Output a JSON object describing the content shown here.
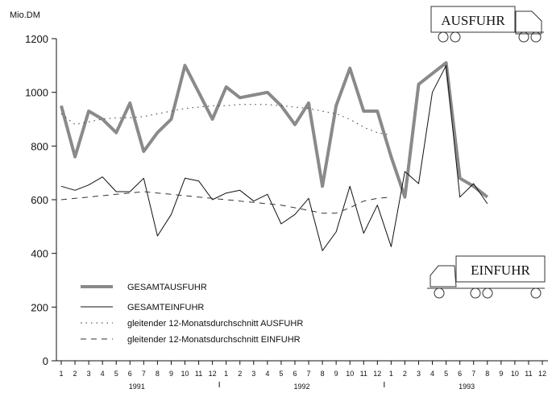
{
  "chart_data": {
    "type": "line",
    "y_label": "Mio.DM",
    "categories": [
      "1",
      "2",
      "3",
      "4",
      "5",
      "6",
      "7",
      "8",
      "9",
      "10",
      "11",
      "12",
      "1",
      "2",
      "3",
      "4",
      "5",
      "6",
      "7",
      "8",
      "9",
      "10",
      "11",
      "12",
      "1",
      "2",
      "3",
      "4",
      "5",
      "6",
      "7",
      "8",
      "9",
      "10",
      "11",
      "12"
    ],
    "years": [
      "1991",
      "1992",
      "1993"
    ],
    "ylim": [
      0,
      1200
    ],
    "yticks": [
      0,
      200,
      400,
      600,
      800,
      1000,
      1200
    ],
    "annotations": [
      "AUSFUHR",
      "EINFUHR"
    ],
    "series": [
      {
        "name": "GESAMTAUSFUHR",
        "color": "#8a8a8a",
        "style": "solid",
        "width": 4,
        "values": [
          950,
          760,
          930,
          900,
          850,
          960,
          780,
          850,
          900,
          1100,
          1000,
          900,
          1020,
          980,
          990,
          1000,
          950,
          880,
          960,
          650,
          950,
          1090,
          930,
          930,
          760,
          610,
          1030,
          1070,
          1110,
          680,
          650,
          610,
          null,
          null,
          null,
          null
        ]
      },
      {
        "name": "GESAMTEINFUHR",
        "color": "#111111",
        "style": "solid",
        "width": 1,
        "values": [
          650,
          635,
          655,
          685,
          630,
          630,
          680,
          465,
          545,
          680,
          670,
          600,
          625,
          635,
          595,
          620,
          510,
          545,
          605,
          410,
          480,
          650,
          475,
          580,
          425,
          705,
          660,
          1000,
          1100,
          610,
          660,
          585,
          null,
          null,
          null,
          null
        ]
      },
      {
        "name": "gleitender 12-Monatsdurchschnitt AUSFUHR",
        "color": "#333333",
        "style": "dotted",
        "width": 1,
        "values": [
          920,
          880,
          890,
          900,
          905,
          905,
          910,
          920,
          930,
          940,
          945,
          950,
          950,
          955,
          955,
          955,
          950,
          945,
          940,
          930,
          920,
          900,
          870,
          850,
          840,
          null,
          null,
          null,
          null,
          null,
          null,
          null,
          null,
          null,
          null,
          null
        ]
      },
      {
        "name": "gleitender 12-Monatsdurchschnitt EINFUHR",
        "color": "#333333",
        "style": "dashed",
        "width": 1,
        "values": [
          600,
          605,
          610,
          615,
          620,
          625,
          630,
          625,
          620,
          615,
          610,
          605,
          600,
          595,
          590,
          585,
          580,
          570,
          560,
          550,
          550,
          570,
          595,
          605,
          610,
          null,
          null,
          null,
          null,
          null,
          null,
          null,
          null,
          null,
          null,
          null
        ]
      }
    ]
  }
}
